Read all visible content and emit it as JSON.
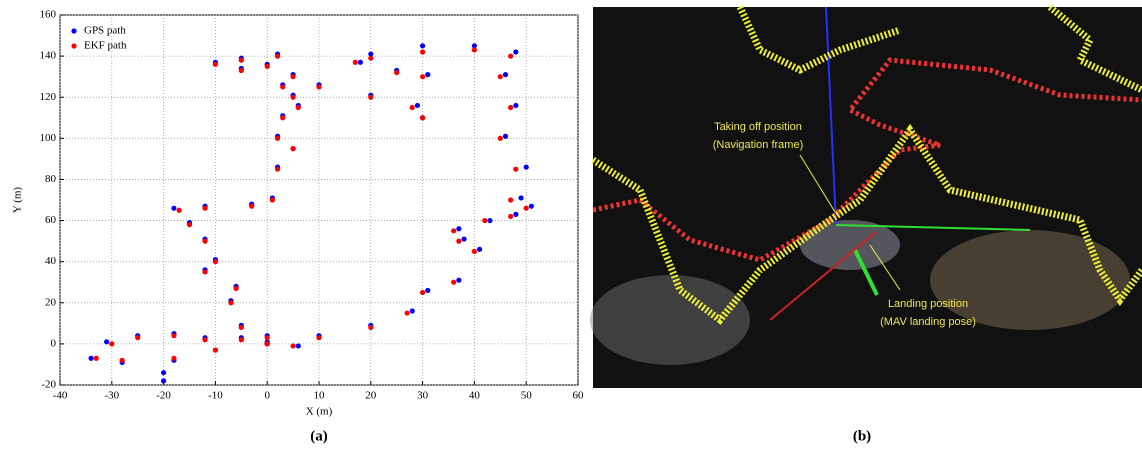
{
  "chart_data": {
    "type": "scatter",
    "xlabel": "X (m)",
    "ylabel": "Y (m)",
    "xlim": [
      -40,
      60
    ],
    "ylim": [
      -20,
      160
    ],
    "xticks": [
      -40,
      -30,
      -20,
      -10,
      0,
      10,
      20,
      30,
      40,
      50,
      60
    ],
    "yticks": [
      -20,
      0,
      20,
      40,
      60,
      80,
      100,
      120,
      140,
      160
    ],
    "grid": true,
    "legend": "upper left",
    "series": [
      {
        "name": "GPS path",
        "color": "#0000ff",
        "x": [
          0,
          10,
          20,
          28,
          31,
          37,
          41,
          38,
          37,
          43,
          48,
          51,
          49,
          50,
          46,
          48,
          46,
          48,
          40,
          30,
          20,
          18,
          25,
          31,
          29,
          30,
          20,
          10,
          5,
          3,
          0,
          -5,
          -10,
          -5,
          2,
          5,
          6,
          3,
          2,
          5,
          2,
          1,
          -3,
          -12,
          -18,
          -15,
          -12,
          -10,
          -12,
          -6,
          -7,
          -5,
          0,
          -5,
          -12,
          -18,
          -25,
          -31,
          -34,
          -28,
          -20,
          -20,
          -18,
          -10,
          0,
          6
        ],
        "values": [
          1,
          4,
          9,
          16,
          26,
          31,
          46,
          51,
          56,
          60,
          63,
          67,
          71,
          86,
          101,
          116,
          131,
          142,
          145,
          145,
          141,
          137,
          133,
          131,
          116,
          110,
          121,
          126,
          121,
          126,
          136,
          139,
          137,
          134,
          141,
          131,
          116,
          111,
          101,
          95,
          86,
          71,
          68,
          67,
          66,
          59,
          51,
          41,
          36,
          28,
          21,
          9,
          4,
          3,
          3,
          5,
          4,
          1,
          -7,
          -9,
          -14,
          -18,
          -8,
          -3,
          0,
          -1
        ]
      },
      {
        "name": "EKF path",
        "color": "#ff0000",
        "x": [
          0,
          10,
          20,
          27,
          30,
          36,
          40,
          37,
          36,
          42,
          47,
          50,
          47,
          48,
          45,
          47,
          45,
          47,
          40,
          30,
          20,
          17,
          25,
          30,
          28,
          30,
          20,
          10,
          5,
          3,
          0,
          -5,
          -10,
          -5,
          2,
          5,
          6,
          3,
          2,
          5,
          2,
          1,
          -3,
          -12,
          -17,
          -15,
          -12,
          -10,
          -12,
          -6,
          -7,
          -5,
          0,
          -5,
          -12,
          -18,
          -25,
          -30,
          -33,
          -28,
          -18,
          -10,
          0,
          5
        ],
        "values": [
          0,
          3,
          8,
          15,
          25,
          30,
          45,
          50,
          55,
          60,
          62,
          66,
          70,
          85,
          100,
          115,
          130,
          140,
          143,
          142,
          139,
          137,
          132,
          130,
          115,
          110,
          120,
          125,
          120,
          125,
          135,
          138,
          136,
          133,
          140,
          130,
          115,
          110,
          100,
          95,
          85,
          70,
          67,
          66,
          65,
          58,
          50,
          40,
          35,
          27,
          20,
          8,
          3,
          2,
          2,
          4,
          3,
          0,
          -7,
          -8,
          -7,
          -3,
          0,
          -1
        ]
      }
    ]
  },
  "panel_labels": [
    "(a)",
    "(b)"
  ],
  "image_annotations": {
    "takeoff": [
      "Taking off position",
      "(Navigation frame)"
    ],
    "landing": [
      "Landing position",
      "(MAV landing pose)"
    ]
  }
}
